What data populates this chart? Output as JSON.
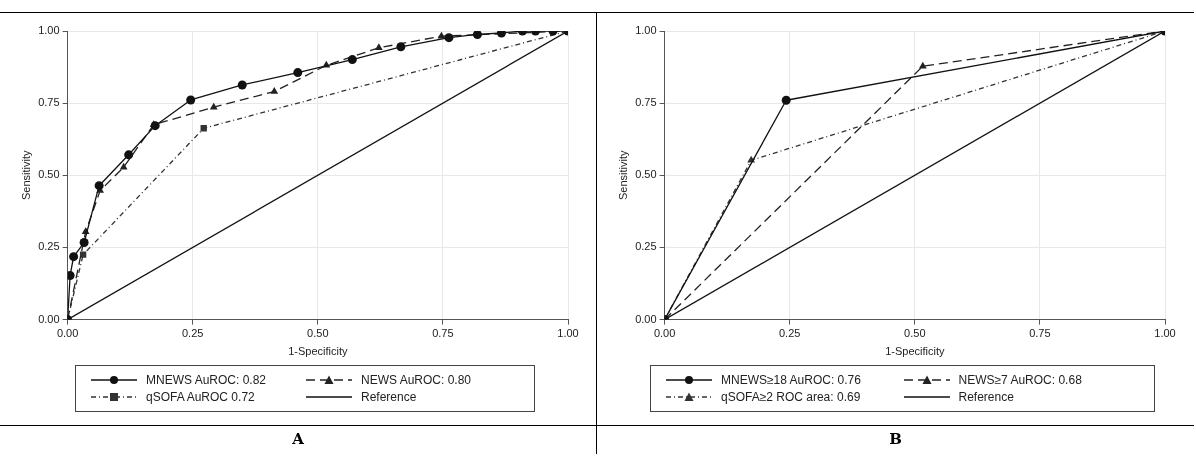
{
  "chart_data": [
    {
      "type": "line",
      "title": "A",
      "xlabel": "1-Specificity",
      "ylabel": "Sensitivity",
      "xlim": [
        0,
        1
      ],
      "ylim": [
        0,
        1
      ],
      "xticks": [
        {
          "value": 0,
          "label": "0.00"
        },
        {
          "value": 0.25,
          "label": "0.25"
        },
        {
          "value": 0.5,
          "label": "0.50"
        },
        {
          "value": 0.75,
          "label": "0.75"
        },
        {
          "value": 1,
          "label": "1.00"
        }
      ],
      "yticks": [
        {
          "value": 0,
          "label": "0.00"
        },
        {
          "value": 0.25,
          "label": "0.25"
        },
        {
          "value": 0.5,
          "label": "0.50"
        },
        {
          "value": 0.75,
          "label": "0.75"
        },
        {
          "value": 1,
          "label": "1.00"
        }
      ],
      "grid": true,
      "legend": "bottom",
      "series": [
        {
          "name": "MNEWS AuROC: 0.82",
          "color": "#111111",
          "marker": "circle",
          "line_style": "solid",
          "x": [
            0,
            0.005,
            0.012,
            0.033,
            0.063,
            0.122,
            0.175,
            0.246,
            0.349,
            0.46,
            0.569,
            0.666,
            0.762,
            0.819,
            0.867,
            0.909,
            0.935,
            0.97,
            1
          ],
          "values": [
            0,
            0.153,
            0.218,
            0.267,
            0.464,
            0.571,
            0.672,
            0.761,
            0.813,
            0.856,
            0.901,
            0.945,
            0.977,
            0.988,
            0.993,
            1,
            1,
            1,
            1
          ]
        },
        {
          "name": "NEWS AuROC: 0.80",
          "color": "#222222",
          "marker": "triangle",
          "line_style": "dashed",
          "x": [
            0,
            0.036,
            0.065,
            0.112,
            0.172,
            0.292,
            0.413,
            0.517,
            0.622,
            0.747,
            1
          ],
          "values": [
            0,
            0.304,
            0.447,
            0.528,
            0.675,
            0.736,
            0.79,
            0.881,
            0.942,
            0.982,
            1
          ]
        },
        {
          "name": "qSOFA AuROC 0.72",
          "color": "#333333",
          "marker": "square",
          "line_style": "dotted",
          "x": [
            0,
            0.031,
            0.272,
            1
          ],
          "values": [
            0,
            0.225,
            0.663,
            1
          ]
        },
        {
          "name": "Reference",
          "color": "#111111",
          "marker": "none",
          "line_style": "solid",
          "x": [
            0,
            1
          ],
          "values": [
            0,
            1
          ]
        }
      ]
    },
    {
      "type": "line",
      "title": "B",
      "xlabel": "1-Specificity",
      "ylabel": "Sensitivity",
      "xlim": [
        0,
        1
      ],
      "ylim": [
        0,
        1
      ],
      "xticks": [
        {
          "value": 0,
          "label": "0.00"
        },
        {
          "value": 0.25,
          "label": "0.25"
        },
        {
          "value": 0.5,
          "label": "0.50"
        },
        {
          "value": 0.75,
          "label": "0.75"
        },
        {
          "value": 1,
          "label": "1.00"
        }
      ],
      "yticks": [
        {
          "value": 0,
          "label": "0.00"
        },
        {
          "value": 0.25,
          "label": "0.25"
        },
        {
          "value": 0.5,
          "label": "0.50"
        },
        {
          "value": 0.75,
          "label": "0.75"
        },
        {
          "value": 1,
          "label": "1.00"
        }
      ],
      "grid": true,
      "legend": "bottom",
      "series": [
        {
          "name": "MNEWS≥18 AuROC: 0.76",
          "color": "#111111",
          "marker": "circle",
          "line_style": "solid",
          "x": [
            0,
            0.243,
            1
          ],
          "values": [
            0,
            0.76,
            1
          ]
        },
        {
          "name": "NEWS≥7 AuROC: 0.68",
          "color": "#222222",
          "marker": "triangle",
          "line_style": "dashed",
          "x": [
            0,
            0.516,
            1
          ],
          "values": [
            0,
            0.878,
            1
          ]
        },
        {
          "name": "qSOFA≥2 ROC area: 0.69",
          "color": "#333333",
          "marker": "triangle",
          "line_style": "dotted",
          "x": [
            0,
            0.173,
            1
          ],
          "values": [
            0,
            0.552,
            1
          ]
        },
        {
          "name": "Reference",
          "color": "#111111",
          "marker": "none",
          "line_style": "solid",
          "x": [
            0,
            1
          ],
          "values": [
            0,
            1
          ]
        }
      ]
    }
  ]
}
